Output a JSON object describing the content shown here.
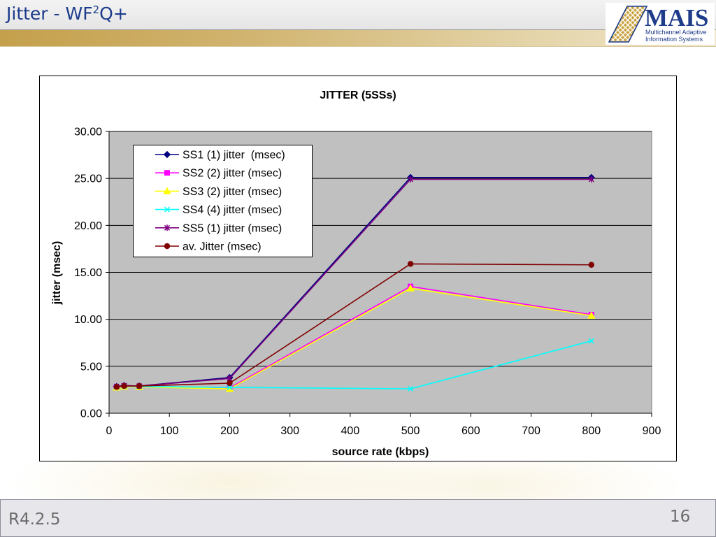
{
  "slide": {
    "title_main": "Jitter - WF",
    "title_superscript": "2",
    "title_end": "Q+",
    "footer_label": "R4.2.5",
    "page_number": "16"
  },
  "logo": {
    "wordmark": "MAIS",
    "tagline_line1": "Multichannel Adaptive",
    "tagline_line2": "Information Systems"
  },
  "colors": {
    "title_text": "#1d3c8c",
    "accent_bar": "#c4a04c",
    "plot_background": "#c0c0c0",
    "footer_text": "#6b6b6b"
  },
  "chart_data": {
    "type": "line",
    "title": "JITTER (5SSs)",
    "xlabel": "source rate (kbps)",
    "ylabel": "jitter (msec)",
    "xlim": [
      0,
      900
    ],
    "ylim": [
      0,
      30
    ],
    "x_tick_labels": [
      "0",
      "100",
      "200",
      "300",
      "400",
      "500",
      "600",
      "700",
      "800",
      "900"
    ],
    "y_tick_labels": [
      "0.00",
      "5.00",
      "10.00",
      "15.00",
      "20.00",
      "25.00",
      "30.00"
    ],
    "grid": "horizontal",
    "legend_position": "top-left",
    "x": [
      12.5,
      25,
      50,
      200,
      500,
      800
    ],
    "series": [
      {
        "name": "SS1 (1) jitter  (msec)",
        "color": "#000080",
        "marker": "diamond",
        "values": [
          2.85,
          2.95,
          2.9,
          3.8,
          25.1,
          25.1
        ]
      },
      {
        "name": "SS2 (2) jitter (msec)",
        "color": "#ff00ff",
        "marker": "square",
        "values": [
          2.8,
          2.9,
          2.85,
          2.7,
          13.5,
          10.5
        ]
      },
      {
        "name": "SS3 (2) jitter (msec)",
        "color": "#ffff00",
        "marker": "triangle",
        "values": [
          2.75,
          2.85,
          2.8,
          2.6,
          13.3,
          10.4
        ]
      },
      {
        "name": "SS4 (4) jitter (msec)",
        "color": "#00ffff",
        "marker": "x",
        "values": [
          2.8,
          2.9,
          2.85,
          2.75,
          2.6,
          7.7
        ]
      },
      {
        "name": "SS5 (1) jitter (msec)",
        "color": "#800080",
        "marker": "star",
        "values": [
          2.85,
          2.95,
          2.9,
          3.7,
          24.9,
          24.9
        ]
      },
      {
        "name": "av. Jitter (msec)",
        "color": "#800000",
        "marker": "circle",
        "values": [
          2.8,
          2.9,
          2.9,
          3.2,
          15.9,
          15.8
        ]
      }
    ]
  }
}
